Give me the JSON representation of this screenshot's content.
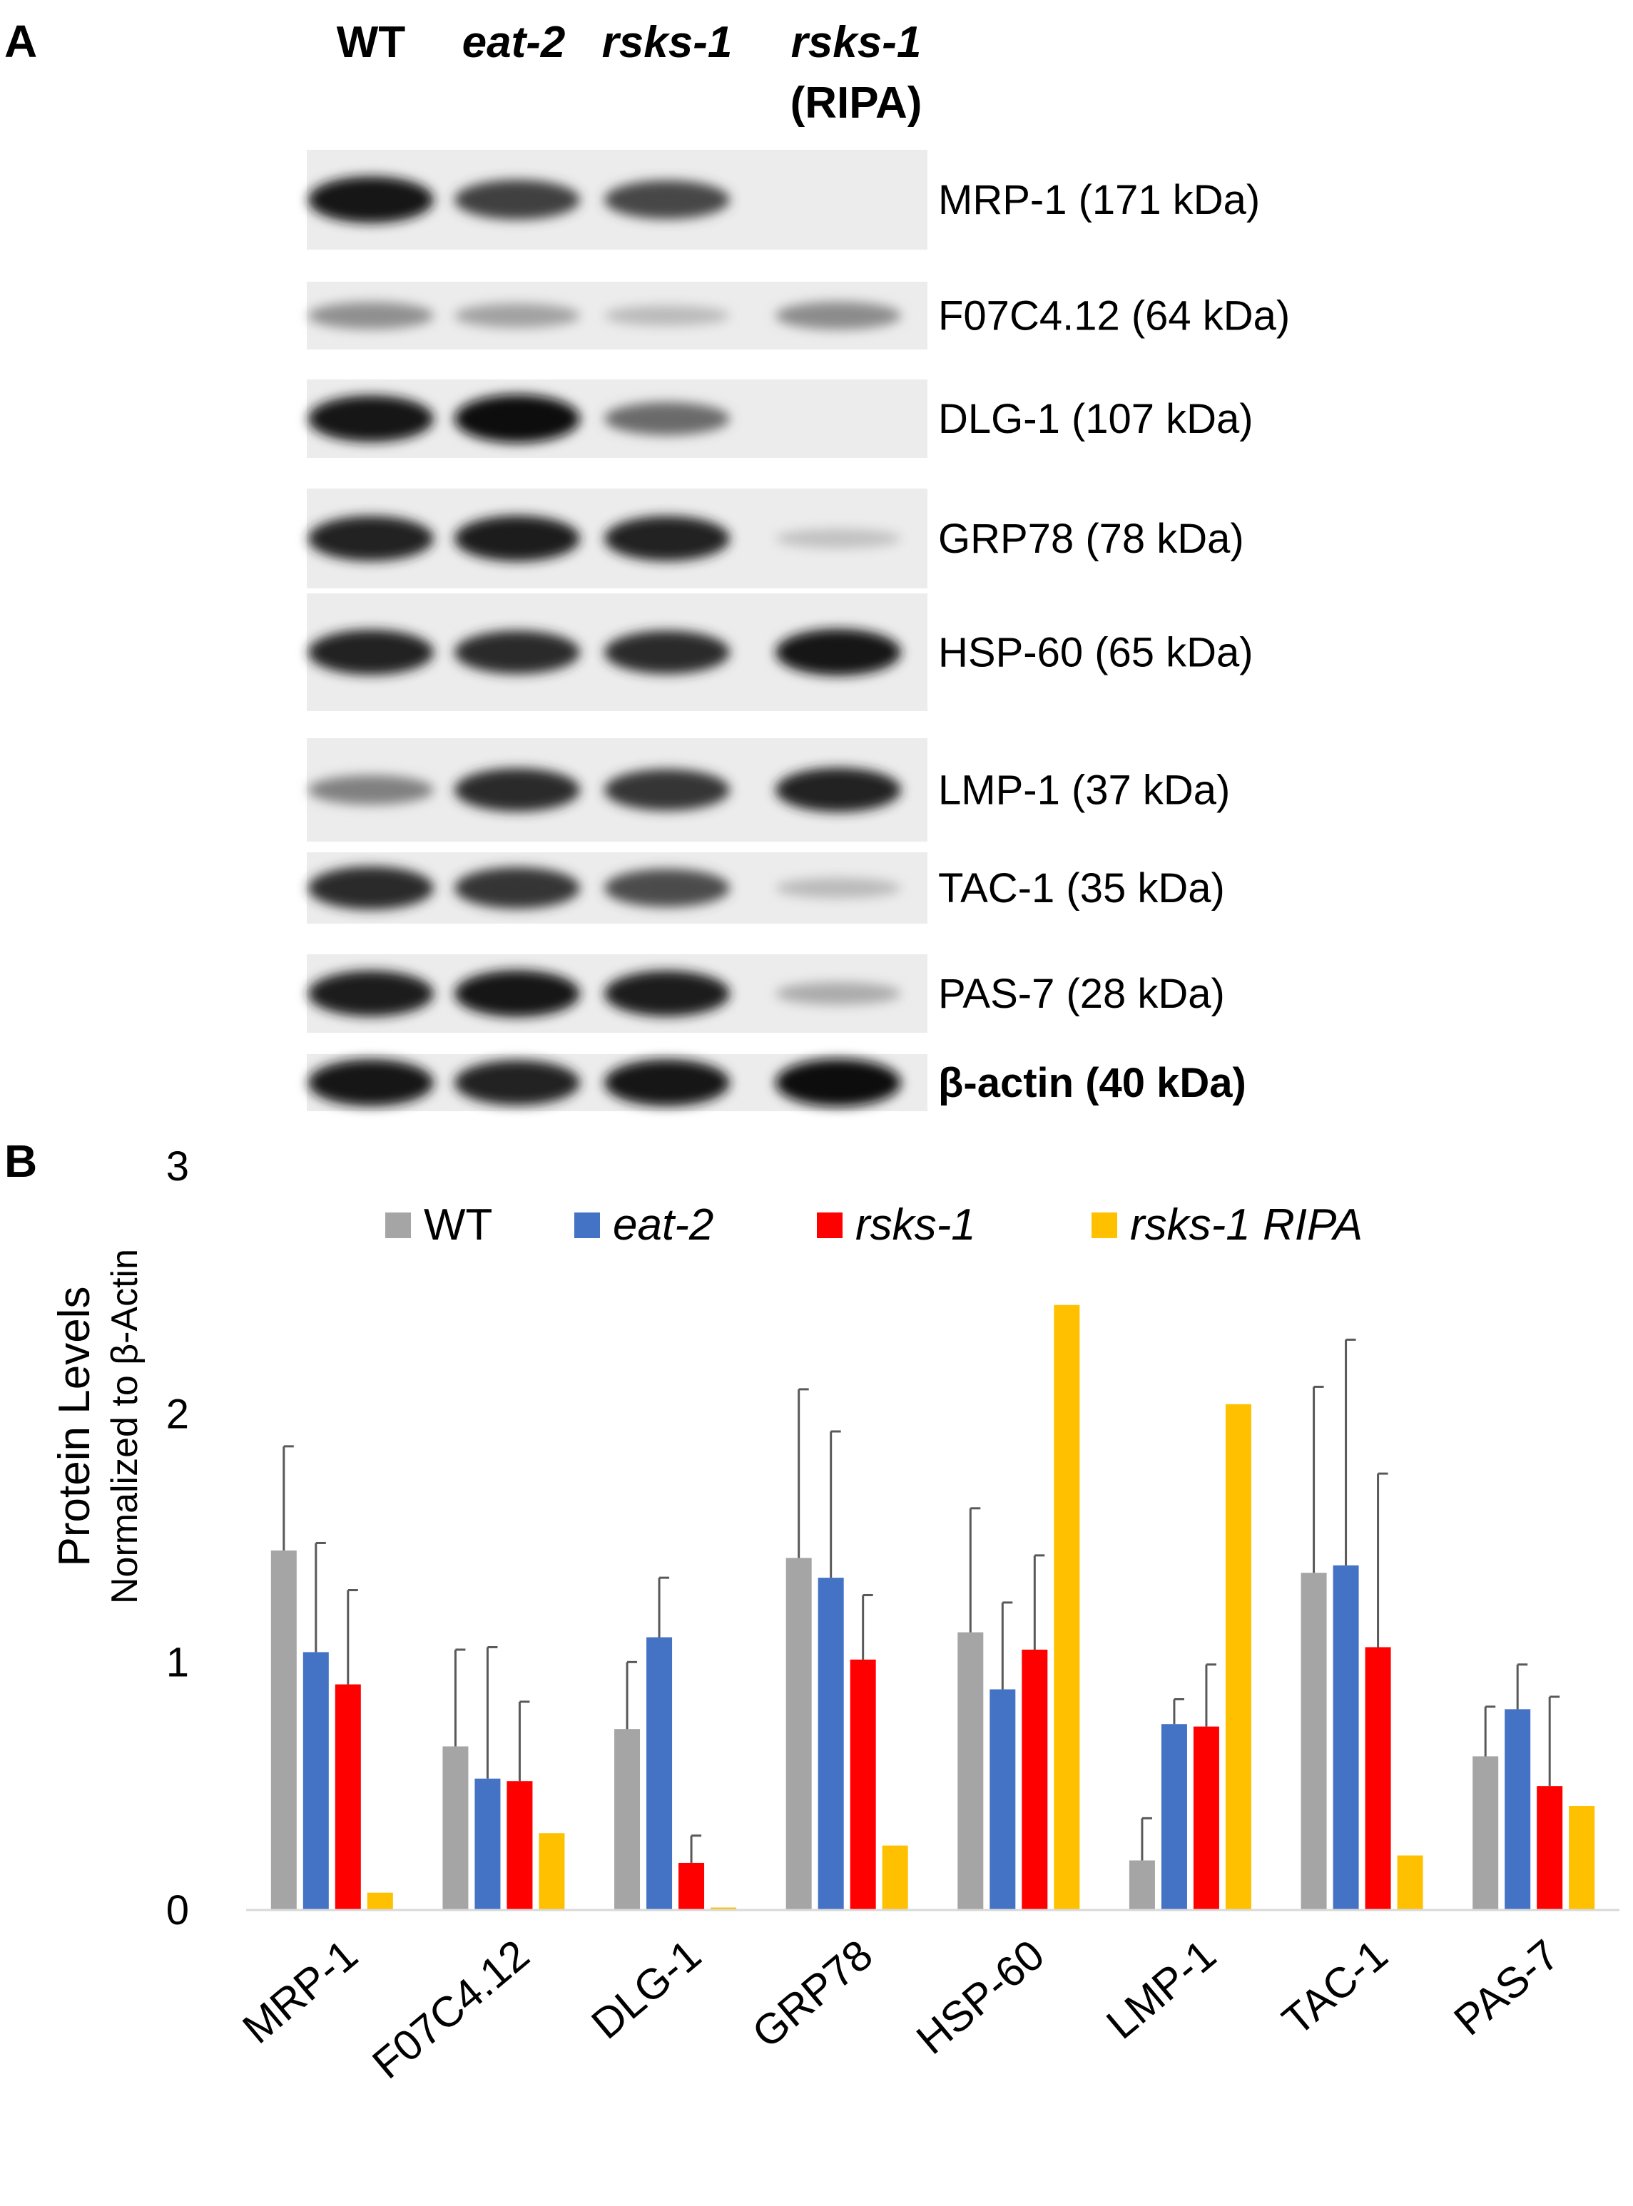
{
  "panel_a": {
    "letter": "A",
    "lanes": [
      {
        "label": "WT",
        "italic": false
      },
      {
        "label": "eat-2",
        "italic": true
      },
      {
        "label": "rsks-1",
        "italic": true
      },
      {
        "label": "rsks-1",
        "sublabel": "(RIPA)",
        "italic": true
      }
    ],
    "blots": [
      {
        "name": "mrp-1",
        "label": "MRP-1 (171 kDa)",
        "bold": false,
        "intensity": [
          0.95,
          0.75,
          0.72,
          0.0
        ]
      },
      {
        "name": "f07c4-12",
        "label": "F07C4.12 (64 kDa)",
        "bold": false,
        "intensity": [
          0.38,
          0.3,
          0.18,
          0.4
        ]
      },
      {
        "name": "dlg-1",
        "label": "DLG-1 (107 kDa)",
        "bold": false,
        "intensity": [
          0.95,
          1.0,
          0.55,
          0.0
        ]
      },
      {
        "name": "grp78",
        "label": "GRP78 (78 kDa)",
        "bold": false,
        "intensity": [
          0.9,
          0.92,
          0.9,
          0.15
        ]
      },
      {
        "name": "hsp-60",
        "label": "HSP-60 (65 kDa)",
        "bold": false,
        "intensity": [
          0.9,
          0.85,
          0.85,
          0.95
        ]
      },
      {
        "name": "lmp-1",
        "label": "LMP-1 (37 kDa)",
        "bold": false,
        "intensity": [
          0.45,
          0.85,
          0.8,
          0.88
        ]
      },
      {
        "name": "tac-1",
        "label": "TAC-1 (35 kDa)",
        "bold": false,
        "intensity": [
          0.85,
          0.8,
          0.7,
          0.18
        ]
      },
      {
        "name": "pas-7",
        "label": "PAS-7 (28 kDa)",
        "bold": false,
        "intensity": [
          0.92,
          0.95,
          0.92,
          0.25
        ]
      },
      {
        "name": "beta-actin",
        "label": "β-actin (40 kDa)",
        "bold": true,
        "intensity": [
          0.95,
          0.9,
          0.95,
          0.98
        ]
      }
    ]
  },
  "panel_b": {
    "letter": "B"
  },
  "chart_data": {
    "type": "bar",
    "title": "",
    "ylabel": "Protein Levels",
    "ylabel_sub": "Normalized to β-Actin",
    "xlabel": "",
    "ylim": [
      0,
      3
    ],
    "yticks": [
      0,
      1,
      2,
      3
    ],
    "grid": false,
    "legend_position": "top",
    "categories": [
      "MRP-1",
      "F07C4.12",
      "DLG-1",
      "GRP78",
      "HSP-60",
      "LMP-1",
      "TAC-1",
      "PAS-7"
    ],
    "series": [
      {
        "name": "WT",
        "italic": false,
        "color": "#A5A5A5",
        "values": [
          1.45,
          0.66,
          0.73,
          1.42,
          1.12,
          0.2,
          1.36,
          0.62
        ],
        "errors": [
          0.42,
          0.39,
          0.27,
          0.68,
          0.5,
          0.17,
          0.75,
          0.2
        ]
      },
      {
        "name": "eat-2",
        "italic": true,
        "color": "#4472C4",
        "values": [
          1.04,
          0.53,
          1.1,
          1.34,
          0.89,
          0.75,
          1.39,
          0.81
        ],
        "errors": [
          0.44,
          0.53,
          0.24,
          0.59,
          0.35,
          0.1,
          0.91,
          0.18
        ]
      },
      {
        "name": "rsks-1",
        "italic": true,
        "color": "#FF0000",
        "values": [
          0.91,
          0.52,
          0.19,
          1.01,
          1.05,
          0.74,
          1.06,
          0.5
        ],
        "errors": [
          0.38,
          0.32,
          0.11,
          0.26,
          0.38,
          0.25,
          0.7,
          0.36
        ]
      },
      {
        "name": "rsks-1 RIPA",
        "italic": true,
        "color": "#FFC000",
        "values": [
          0.07,
          0.31,
          0.01,
          0.26,
          2.44,
          2.04,
          0.22,
          0.42
        ],
        "errors": [
          0,
          0,
          0,
          0,
          0,
          0,
          0,
          0
        ]
      }
    ]
  }
}
